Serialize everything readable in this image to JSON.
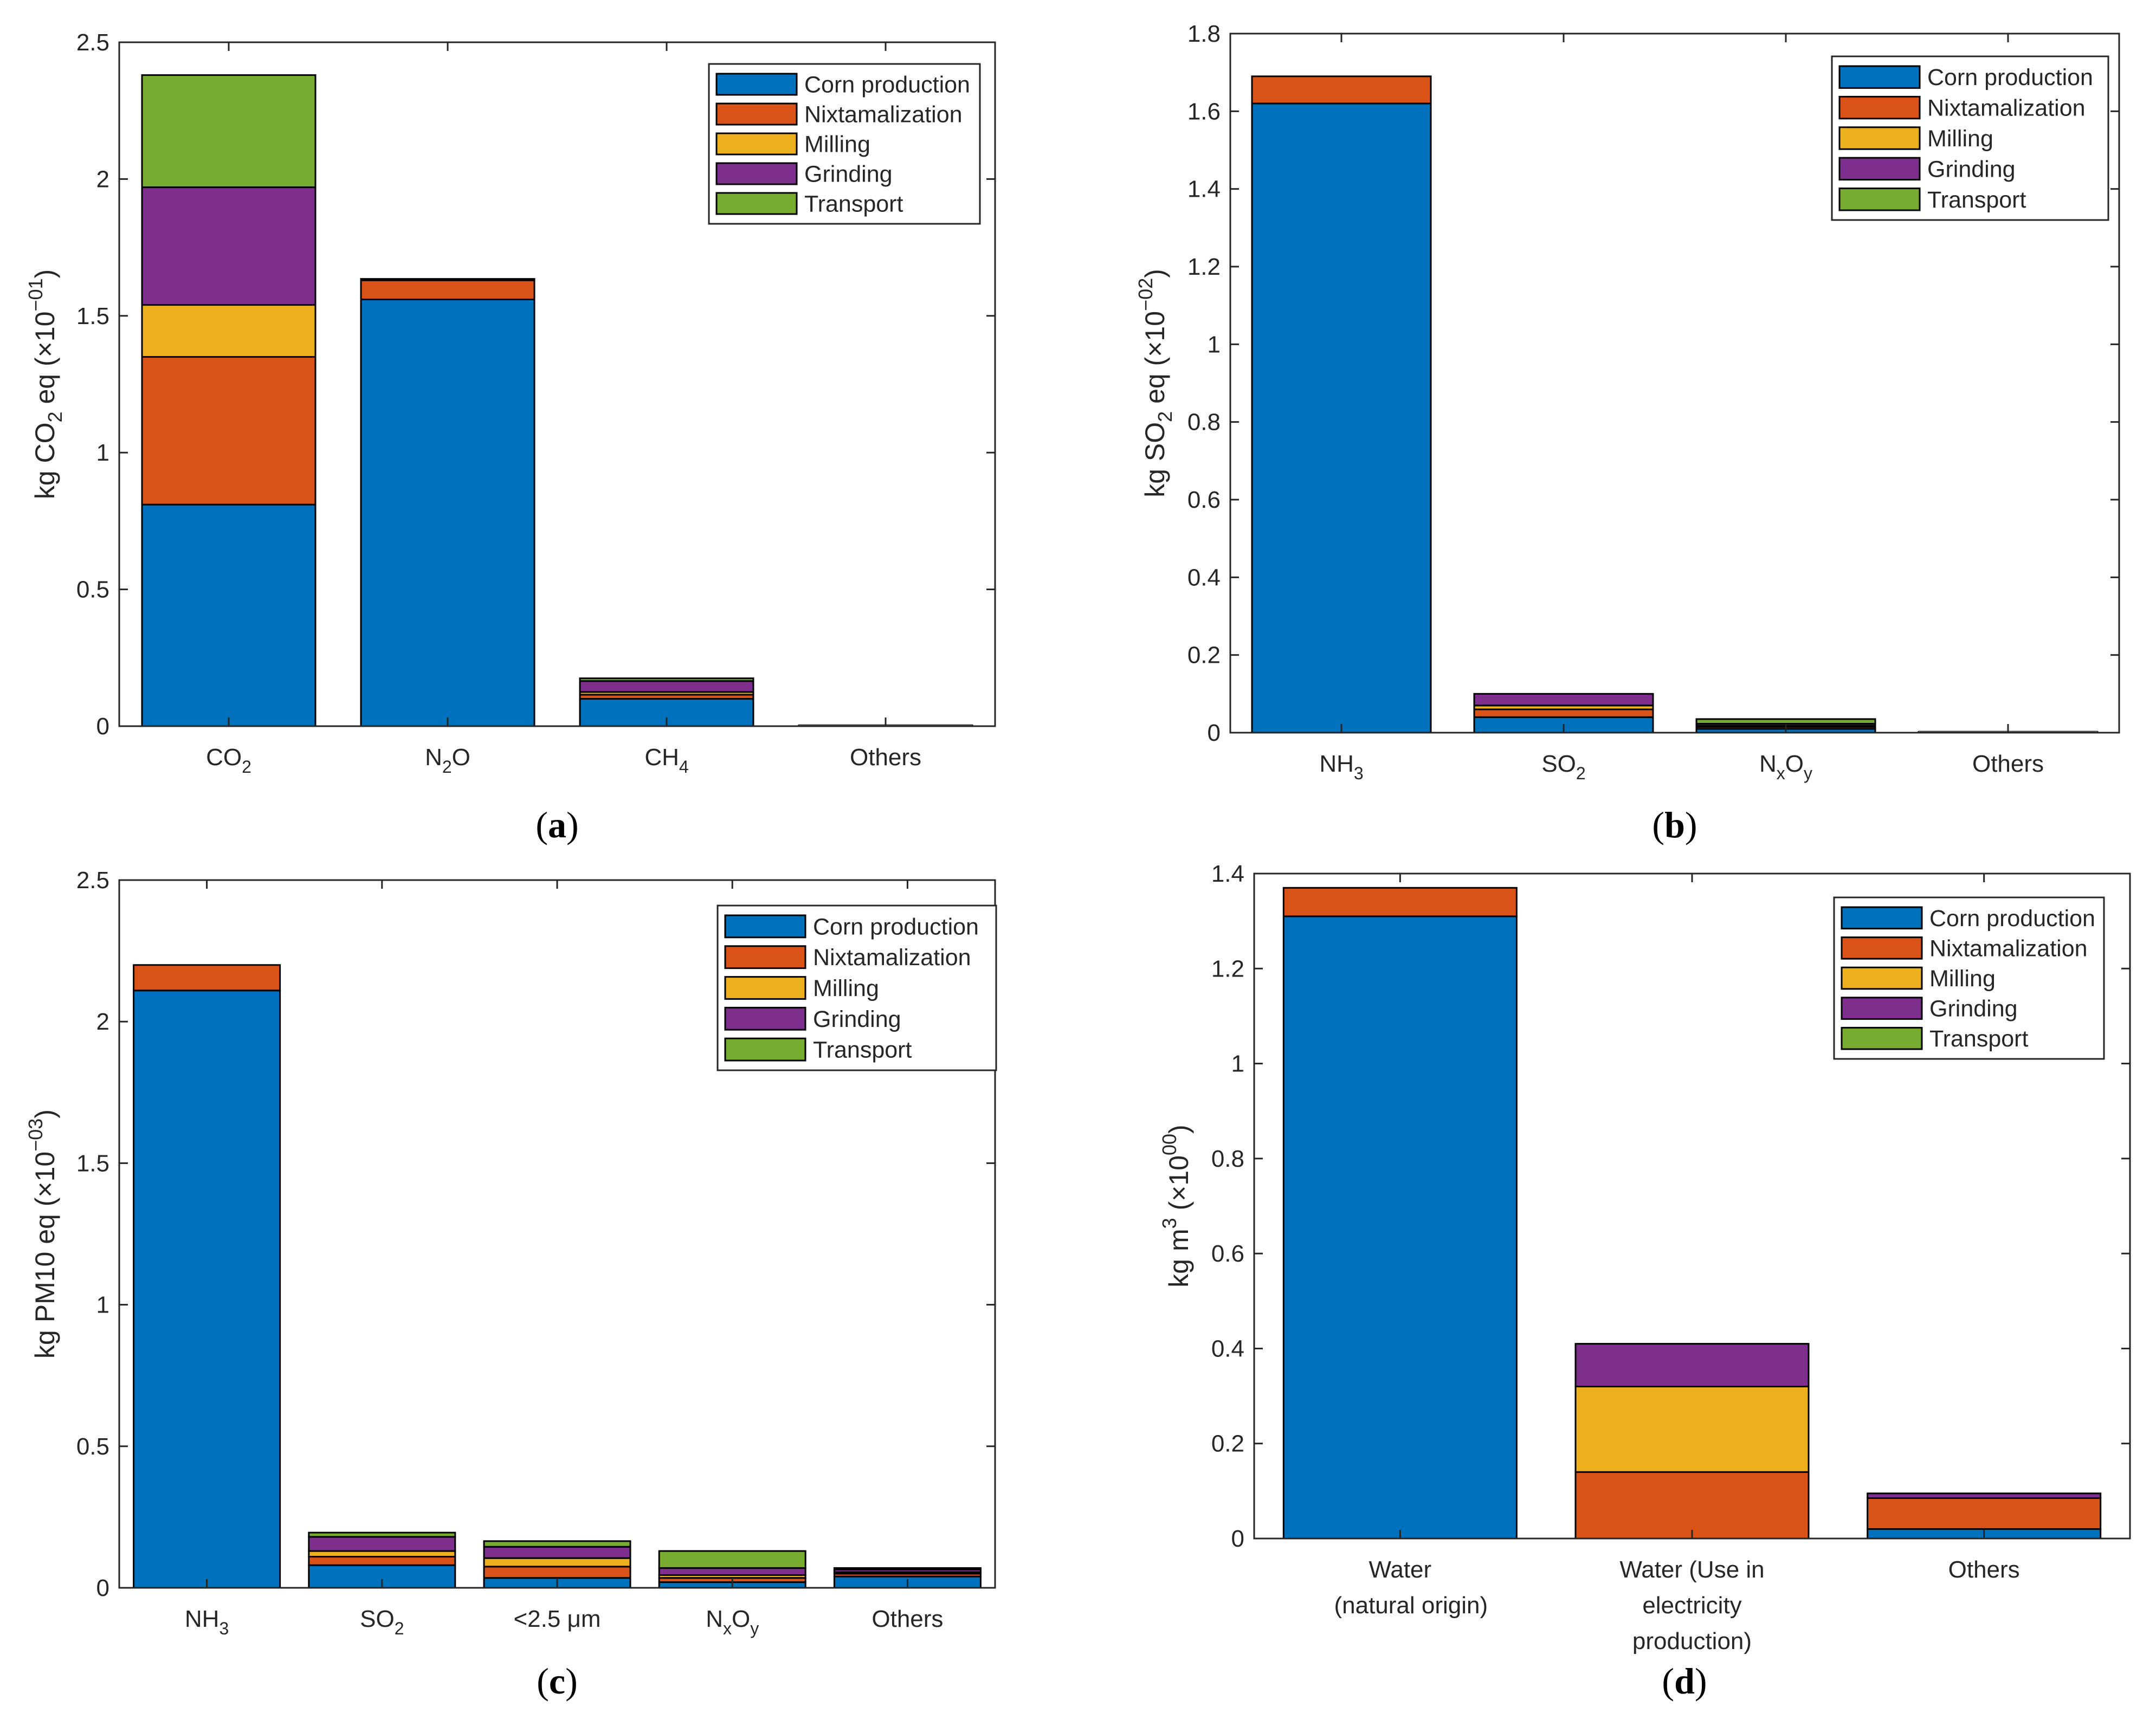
{
  "series_colors": {
    "Corn production": "#0072BD",
    "Nixtamalization": "#D95319",
    "Milling": "#EDB120",
    "Grinding": "#7E2F8E",
    "Transport": "#77AC30"
  },
  "chart_data": [
    {
      "type": "bar",
      "stacked": true,
      "panel": "a",
      "caption": {
        "open": "(",
        "letter": "a",
        "close": ")"
      },
      "ylabel": {
        "pre": "kg CO",
        "sub": "2",
        "mid": " eq (×10",
        "sup": "−01",
        "post": ")"
      },
      "ylim": [
        0,
        2.5
      ],
      "yticks": [
        0,
        0.5,
        1,
        1.5,
        2,
        2.5
      ],
      "ytick_labels": [
        "0",
        "0.5",
        "1",
        "1.5",
        "2",
        "2.5"
      ],
      "categories": [
        {
          "parts": [
            {
              "t": "CO",
              "s": "n"
            },
            {
              "t": "2",
              "s": "sub"
            }
          ]
        },
        {
          "parts": [
            {
              "t": "N",
              "s": "n"
            },
            {
              "t": "2",
              "s": "sub"
            },
            {
              "t": "O",
              "s": "n"
            }
          ]
        },
        {
          "parts": [
            {
              "t": "CH",
              "s": "n"
            },
            {
              "t": "4",
              "s": "sub"
            }
          ]
        },
        {
          "parts": [
            {
              "t": "Others",
              "s": "n"
            }
          ]
        }
      ],
      "series": [
        {
          "name": "Corn production",
          "values": [
            0.81,
            1.56,
            0.1,
            0.003
          ]
        },
        {
          "name": "Nixtamalization",
          "values": [
            0.54,
            0.07,
            0.015,
            0.0
          ]
        },
        {
          "name": "Milling",
          "values": [
            0.19,
            0.0,
            0.01,
            0.0
          ]
        },
        {
          "name": "Grinding",
          "values": [
            0.43,
            0.005,
            0.04,
            0.0
          ]
        },
        {
          "name": "Transport",
          "values": [
            0.41,
            0.0,
            0.01,
            0.0
          ]
        }
      ],
      "legend_location": "top-right"
    },
    {
      "type": "bar",
      "stacked": true,
      "panel": "b",
      "caption": {
        "open": "(",
        "letter": "b",
        "close": ")"
      },
      "ylabel": {
        "pre": "kg SO",
        "sub": "2",
        "mid": " eq (×10",
        "sup": "−02",
        "post": ")"
      },
      "ylim": [
        0,
        1.8
      ],
      "yticks": [
        0,
        0.2,
        0.4,
        0.6,
        0.8,
        1,
        1.2,
        1.4,
        1.6,
        1.8
      ],
      "ytick_labels": [
        "0",
        "0.2",
        "0.4",
        "0.6",
        "0.8",
        "1",
        "1.2",
        "1.4",
        "1.6",
        "1.8"
      ],
      "categories": [
        {
          "parts": [
            {
              "t": "NH",
              "s": "n"
            },
            {
              "t": "3",
              "s": "sub"
            }
          ]
        },
        {
          "parts": [
            {
              "t": "SO",
              "s": "n"
            },
            {
              "t": "2",
              "s": "sub"
            }
          ]
        },
        {
          "parts": [
            {
              "t": "N",
              "s": "n"
            },
            {
              "t": "x",
              "s": "sub"
            },
            {
              "t": "O",
              "s": "n"
            },
            {
              "t": "y",
              "s": "sub"
            }
          ]
        },
        {
          "parts": [
            {
              "t": "Others",
              "s": "n"
            }
          ]
        }
      ],
      "series": [
        {
          "name": "Corn production",
          "values": [
            1.62,
            0.04,
            0.01,
            0.002
          ]
        },
        {
          "name": "Nixtamalization",
          "values": [
            0.07,
            0.02,
            0.005,
            0.0
          ]
        },
        {
          "name": "Milling",
          "values": [
            0.0,
            0.01,
            0.003,
            0.0
          ]
        },
        {
          "name": "Grinding",
          "values": [
            0.0,
            0.03,
            0.005,
            0.0
          ]
        },
        {
          "name": "Transport",
          "values": [
            0.0,
            0.0,
            0.012,
            0.0
          ]
        }
      ],
      "legend_location": "top-right"
    },
    {
      "type": "bar",
      "stacked": true,
      "panel": "c",
      "caption": {
        "open": "(",
        "letter": "c",
        "close": ")"
      },
      "ylabel": {
        "pre": "kg PM10 eq (×10",
        "sub": "",
        "mid": "",
        "sup": "−03",
        "post": ")"
      },
      "ylim": [
        0,
        2.5
      ],
      "yticks": [
        0,
        0.5,
        1,
        1.5,
        2,
        2.5
      ],
      "ytick_labels": [
        "0",
        "0.5",
        "1",
        "1.5",
        "2",
        "2.5"
      ],
      "categories": [
        {
          "parts": [
            {
              "t": "NH",
              "s": "n"
            },
            {
              "t": "3",
              "s": "sub"
            }
          ]
        },
        {
          "parts": [
            {
              "t": "SO",
              "s": "n"
            },
            {
              "t": "2",
              "s": "sub"
            }
          ]
        },
        {
          "parts": [
            {
              "t": "<2.5 μm",
              "s": "n"
            }
          ]
        },
        {
          "parts": [
            {
              "t": "N",
              "s": "n"
            },
            {
              "t": "x",
              "s": "sub"
            },
            {
              "t": "O",
              "s": "n"
            },
            {
              "t": "y",
              "s": "sub"
            }
          ]
        },
        {
          "parts": [
            {
              "t": "Others",
              "s": "n"
            }
          ]
        }
      ],
      "series": [
        {
          "name": "Corn production",
          "values": [
            2.11,
            0.08,
            0.035,
            0.02,
            0.04
          ]
        },
        {
          "name": "Nixtamalization",
          "values": [
            0.09,
            0.03,
            0.04,
            0.015,
            0.01
          ]
        },
        {
          "name": "Milling",
          "values": [
            0.0,
            0.02,
            0.03,
            0.01,
            0.005
          ]
        },
        {
          "name": "Grinding",
          "values": [
            0.0,
            0.05,
            0.04,
            0.025,
            0.01
          ]
        },
        {
          "name": "Transport",
          "values": [
            0.0,
            0.015,
            0.02,
            0.06,
            0.005
          ]
        }
      ],
      "legend_location": "top-right"
    },
    {
      "type": "bar",
      "stacked": true,
      "panel": "d",
      "caption": {
        "open": "(",
        "letter": "d",
        "close": ")"
      },
      "ylabel": {
        "pre": "kg m",
        "sub": "",
        "mid": "",
        "sup3": "3",
        "mid2": " (×10",
        "sup": "00",
        "post": ")"
      },
      "ylim": [
        0,
        1.4
      ],
      "yticks": [
        0,
        0.2,
        0.4,
        0.6,
        0.8,
        1,
        1.2,
        1.4
      ],
      "ytick_labels": [
        "0",
        "0.2",
        "0.4",
        "0.6",
        "0.8",
        "1",
        "1.2",
        "1.4"
      ],
      "categories": [
        {
          "lines": [
            "Water",
            "(natural origin)"
          ]
        },
        {
          "lines": [
            "Water (Use in",
            "electricity",
            "production)"
          ]
        },
        {
          "lines": [
            "Others"
          ]
        }
      ],
      "series": [
        {
          "name": "Corn production",
          "values": [
            1.31,
            0.0,
            0.02
          ]
        },
        {
          "name": "Nixtamalization",
          "values": [
            0.06,
            0.14,
            0.065
          ]
        },
        {
          "name": "Milling",
          "values": [
            0.0,
            0.18,
            0.0
          ]
        },
        {
          "name": "Grinding",
          "values": [
            0.0,
            0.09,
            0.01
          ]
        },
        {
          "name": "Transport",
          "values": [
            0.0,
            0.0,
            0.0
          ]
        }
      ],
      "legend_location": "top-right"
    }
  ]
}
